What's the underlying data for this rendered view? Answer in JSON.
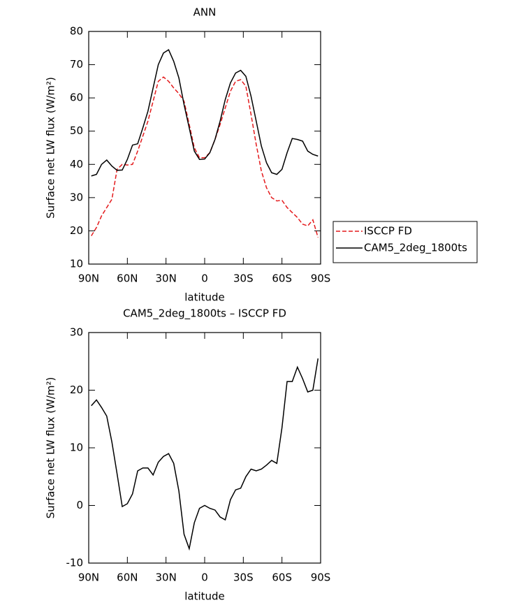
{
  "chart_data": [
    {
      "type": "line",
      "title": "ANN",
      "xlabel": "latitude",
      "ylabel": "Surface net LW flux (W/m²)",
      "x": [
        88,
        84,
        80,
        76,
        72,
        68,
        64,
        60,
        56,
        52,
        48,
        44,
        40,
        36,
        32,
        28,
        24,
        20,
        16,
        12,
        8,
        4,
        0,
        -4,
        -8,
        -12,
        -16,
        -20,
        -24,
        -28,
        -32,
        -36,
        -40,
        -44,
        -48,
        -52,
        -56,
        -60,
        -64,
        -68,
        -72,
        -76,
        -80,
        -84,
        -88
      ],
      "series": [
        {
          "name": "ISCCP FD",
          "color": "#e41a1c",
          "dashed": true,
          "values": [
            18.5,
            21,
            24.5,
            27,
            29.5,
            38.5,
            40,
            39.8,
            40,
            44,
            48.5,
            53,
            59,
            65,
            66.3,
            65,
            63,
            61.3,
            59,
            52,
            45,
            42,
            42,
            43.5,
            47.5,
            52,
            57,
            62,
            65,
            65.5,
            63.5,
            55,
            46,
            38,
            33,
            30,
            29,
            29.2,
            27,
            25.5,
            24,
            22,
            21.5,
            23.3,
            18
          ]
        },
        {
          "name": "CAM5_2deg_1800ts",
          "color": "#000000",
          "dashed": false,
          "values": [
            36.5,
            37,
            40,
            41.3,
            39.5,
            38.2,
            38.3,
            41.5,
            45.8,
            46.2,
            51,
            56,
            63,
            70,
            73.5,
            74.5,
            71,
            66,
            58,
            51,
            44,
            41.5,
            41.6,
            43.5,
            47.5,
            53,
            59.5,
            64.5,
            67.5,
            68.3,
            66.5,
            60.5,
            53,
            45.5,
            40.5,
            37.5,
            37,
            38.5,
            43.5,
            47.8,
            47.5,
            47,
            44,
            43,
            42.5
          ]
        }
      ],
      "xlim": [
        90,
        -90
      ],
      "xticks": [
        {
          "value": 90,
          "label": "90N"
        },
        {
          "value": 60,
          "label": "60N"
        },
        {
          "value": 30,
          "label": "30N"
        },
        0,
        {
          "value": -30,
          "label": "30S"
        },
        {
          "value": -60,
          "label": "60S"
        },
        {
          "value": -90,
          "label": "90S"
        }
      ],
      "ylim": [
        10,
        80
      ],
      "yticks": [
        10,
        20,
        30,
        40,
        50,
        60,
        70,
        80
      ],
      "legend": "right"
    },
    {
      "type": "line",
      "title": "CAM5_2deg_1800ts – ISCCP FD",
      "xlabel": "latitude",
      "ylabel": "Surface net LW flux (W/m²)",
      "x": [
        88,
        84,
        80,
        76,
        72,
        68,
        64,
        60,
        56,
        52,
        48,
        44,
        40,
        36,
        32,
        28,
        24,
        20,
        16,
        12,
        8,
        4,
        0,
        -4,
        -8,
        -12,
        -16,
        -20,
        -24,
        -28,
        -32,
        -36,
        -40,
        -44,
        -48,
        -52,
        -56,
        -60,
        -64,
        -68,
        -72,
        -76,
        -80,
        -84,
        -88
      ],
      "series": [
        {
          "color": "#000000",
          "dashed": false,
          "values": [
            17.3,
            18.3,
            17,
            15.5,
            11,
            5.5,
            -0.2,
            0.3,
            2,
            6,
            6.5,
            6.5,
            5.3,
            7.5,
            8.5,
            9,
            7.3,
            2.5,
            -5,
            -7.5,
            -3,
            -0.5,
            0,
            -0.5,
            -0.8,
            -2,
            -2.5,
            1,
            2.7,
            3,
            5,
            6.3,
            6,
            6.3,
            7,
            7.8,
            7.3,
            13.5,
            21.5,
            21.5,
            24,
            22,
            19.7,
            20,
            25.5
          ]
        }
      ],
      "xlim": [
        90,
        -90
      ],
      "xticks": [
        {
          "value": 90,
          "label": "90N"
        },
        {
          "value": 60,
          "label": "60N"
        },
        {
          "value": 30,
          "label": "30N"
        },
        0,
        {
          "value": -30,
          "label": "30S"
        },
        {
          "value": -60,
          "label": "60S"
        },
        {
          "value": -90,
          "label": "90S"
        }
      ],
      "ylim": [
        -10,
        30
      ],
      "yticks": [
        -10,
        0,
        10,
        20,
        30
      ]
    }
  ]
}
